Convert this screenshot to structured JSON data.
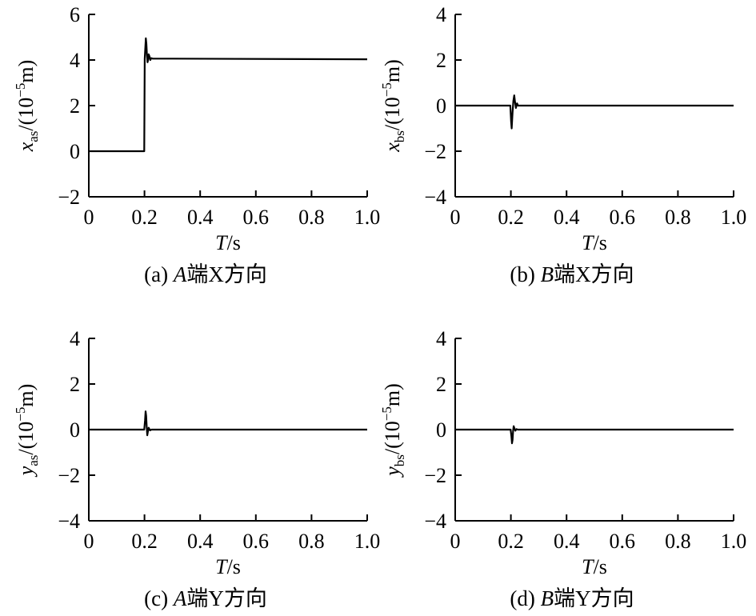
{
  "chart_data": [
    {
      "type": "line",
      "caption": "(a) A端X方向",
      "caption_parts": {
        "pre": "(a) ",
        "letter": "A",
        "post": "端X方向"
      },
      "xlabel": {
        "italic": "T",
        "rest": "/s"
      },
      "ylabel": {
        "var": "x",
        "sub": "as",
        "rest": "/(10",
        "sup": "−5",
        "unit": "m)"
      },
      "xlim": [
        0,
        1.0
      ],
      "ylim": [
        -2,
        6
      ],
      "xticks": [
        0,
        0.2,
        0.4,
        0.6,
        0.8,
        1.0
      ],
      "xtick_labels": [
        "0",
        "0.2",
        "0.4",
        "0.6",
        "0.8",
        "1.0"
      ],
      "yticks": [
        -2,
        0,
        2,
        4,
        6
      ],
      "ytick_labels": [
        "−2",
        "0",
        "2",
        "4",
        "6"
      ],
      "series": [
        {
          "x": [
            0,
            0.199,
            0.201,
            0.205,
            0.207,
            0.209,
            0.211,
            0.213,
            0.215,
            0.218,
            0.221,
            0.224,
            0.23,
            0.3,
            1.0
          ],
          "y": [
            0,
            0,
            4.05,
            4.95,
            4.7,
            4.2,
            3.9,
            4.0,
            4.25,
            4.15,
            4.0,
            4.08,
            4.06,
            4.06,
            4.03
          ]
        }
      ]
    },
    {
      "type": "line",
      "caption": "(b) B端X方向",
      "caption_parts": {
        "pre": "(b) ",
        "letter": "B",
        "post": "端X方向"
      },
      "xlabel": {
        "italic": "T",
        "rest": "/s"
      },
      "ylabel": {
        "var": "x",
        "sub": "bs",
        "rest": "/(10",
        "sup": "−5",
        "unit": "m)"
      },
      "xlim": [
        0,
        1.0
      ],
      "ylim": [
        -4,
        4
      ],
      "xticks": [
        0,
        0.2,
        0.4,
        0.6,
        0.8,
        1.0
      ],
      "xtick_labels": [
        "0",
        "0.2",
        "0.4",
        "0.6",
        "0.8",
        "1.0"
      ],
      "yticks": [
        -4,
        -2,
        0,
        2,
        4
      ],
      "ytick_labels": [
        "−4",
        "−2",
        "0",
        "2",
        "4"
      ],
      "series": [
        {
          "x": [
            0,
            0.198,
            0.201,
            0.203,
            0.206,
            0.209,
            0.212,
            0.215,
            0.218,
            0.222,
            0.226,
            0.24,
            1.0
          ],
          "y": [
            0,
            0,
            -0.7,
            -1.0,
            -0.3,
            0.2,
            0.45,
            0.15,
            -0.1,
            0.1,
            0.0,
            0.0,
            0.0
          ]
        }
      ]
    },
    {
      "type": "line",
      "caption": "(c) A端Y方向",
      "caption_parts": {
        "pre": "(c) ",
        "letter": "A",
        "post": "端Y方向"
      },
      "xlabel": {
        "italic": "T",
        "rest": "/s"
      },
      "ylabel": {
        "var": "y",
        "sub": "as",
        "rest": "/(10",
        "sup": "−5",
        "unit": "m)"
      },
      "xlim": [
        0,
        1.0
      ],
      "ylim": [
        -4,
        4
      ],
      "xticks": [
        0,
        0.2,
        0.4,
        0.6,
        0.8,
        1.0
      ],
      "xtick_labels": [
        "0",
        "0.2",
        "0.4",
        "0.6",
        "0.8",
        "1.0"
      ],
      "yticks": [
        -4,
        -2,
        0,
        2,
        4
      ],
      "ytick_labels": [
        "−4",
        "−2",
        "0",
        "2",
        "4"
      ],
      "series": [
        {
          "x": [
            0,
            0.199,
            0.202,
            0.204,
            0.206,
            0.208,
            0.21,
            0.212,
            0.215,
            0.22,
            0.225,
            1.0
          ],
          "y": [
            0,
            0,
            0.4,
            0.8,
            0.6,
            0.1,
            -0.25,
            -0.1,
            0.08,
            -0.03,
            0.0,
            0.0
          ]
        }
      ]
    },
    {
      "type": "line",
      "caption": "(d) B端Y方向",
      "caption_parts": {
        "pre": "(d) ",
        "letter": "B",
        "post": "端Y方向"
      },
      "xlabel": {
        "italic": "T",
        "rest": "/s"
      },
      "ylabel": {
        "var": "y",
        "sub": "bs",
        "rest": "/(10",
        "sup": "−5",
        "unit": "m)"
      },
      "xlim": [
        0,
        1.0
      ],
      "ylim": [
        -4,
        4
      ],
      "xticks": [
        0,
        0.2,
        0.4,
        0.6,
        0.8,
        1.0
      ],
      "xtick_labels": [
        "0",
        "0.2",
        "0.4",
        "0.6",
        "0.8",
        "1.0"
      ],
      "yticks": [
        -4,
        -2,
        0,
        2,
        4
      ],
      "ytick_labels": [
        "−4",
        "−2",
        "0",
        "2",
        "4"
      ],
      "series": [
        {
          "x": [
            0,
            0.199,
            0.202,
            0.204,
            0.206,
            0.208,
            0.21,
            0.213,
            0.216,
            0.22,
            0.225,
            1.0
          ],
          "y": [
            0,
            0,
            -0.3,
            -0.6,
            -0.45,
            -0.05,
            0.15,
            0.05,
            -0.05,
            0.02,
            0.0,
            0.0
          ]
        }
      ]
    }
  ]
}
